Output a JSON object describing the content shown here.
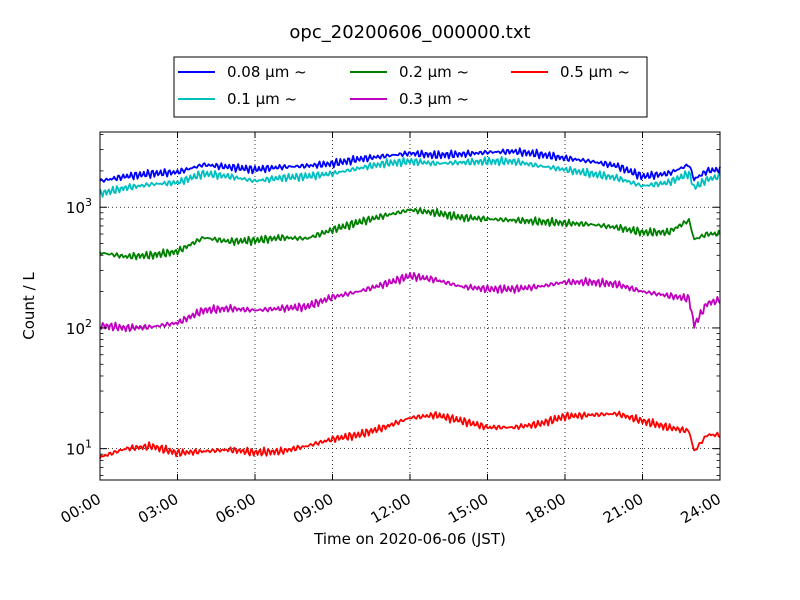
{
  "chart_data": {
    "type": "line",
    "title": "opc_20200606_000000.txt",
    "xlabel": "Time on 2020-06-06 (JST)",
    "ylabel": "Count / L",
    "y_scale": "log",
    "ylim": [
      5.5,
      4200
    ],
    "xlim_hours": [
      0,
      24
    ],
    "x_ticks": [
      {
        "hour": 0,
        "label": "00:00"
      },
      {
        "hour": 3,
        "label": "03:00"
      },
      {
        "hour": 6,
        "label": "06:00"
      },
      {
        "hour": 9,
        "label": "09:00"
      },
      {
        "hour": 12,
        "label": "12:00"
      },
      {
        "hour": 15,
        "label": "15:00"
      },
      {
        "hour": 18,
        "label": "18:00"
      },
      {
        "hour": 21,
        "label": "21:00"
      },
      {
        "hour": 24,
        "label": "24:00"
      }
    ],
    "y_ticks": [
      {
        "value": 10,
        "base": "10",
        "exp": "1"
      },
      {
        "value": 100,
        "base": "10",
        "exp": "2"
      },
      {
        "value": 1000,
        "base": "10",
        "exp": "3"
      }
    ],
    "grid": true,
    "legend_position": "top-center",
    "series": [
      {
        "name": "0.08 μm ~",
        "color": "#0000ff",
        "x": [
          0,
          1,
          2,
          3,
          4,
          5,
          6,
          7,
          8,
          9,
          10,
          11,
          12,
          13,
          14,
          15,
          16,
          17,
          18,
          19,
          20,
          21,
          22,
          22.8,
          23,
          23.5,
          24
        ],
        "y": [
          1650,
          1800,
          1900,
          1950,
          2250,
          2150,
          2050,
          2150,
          2200,
          2300,
          2500,
          2650,
          2800,
          2700,
          2750,
          2850,
          2900,
          2750,
          2550,
          2400,
          2200,
          1800,
          1900,
          2250,
          1700,
          2000,
          2050
        ]
      },
      {
        "name": "0.1 μm ~",
        "color": "#00bfbf",
        "x": [
          0,
          1,
          2,
          3,
          4,
          5,
          6,
          7,
          8,
          9,
          10,
          11,
          12,
          13,
          14,
          15,
          16,
          17,
          18,
          19,
          20,
          21,
          22,
          22.8,
          23,
          23.5,
          24
        ],
        "y": [
          1300,
          1450,
          1550,
          1600,
          1900,
          1800,
          1650,
          1750,
          1800,
          1900,
          2100,
          2300,
          2400,
          2300,
          2350,
          2400,
          2400,
          2200,
          2050,
          1900,
          1750,
          1500,
          1600,
          1900,
          1450,
          1700,
          1800
        ]
      },
      {
        "name": "0.2 μm ~",
        "color": "#008000",
        "x": [
          0,
          1,
          2,
          3,
          4,
          5,
          6,
          7,
          8,
          9,
          10,
          11,
          12,
          13,
          14,
          15,
          16,
          17,
          18,
          19,
          20,
          21,
          22,
          22.8,
          23,
          23.5,
          24
        ],
        "y": [
          420,
          390,
          400,
          430,
          560,
          520,
          530,
          560,
          550,
          650,
          750,
          850,
          950,
          900,
          820,
          800,
          780,
          760,
          740,
          720,
          680,
          620,
          620,
          780,
          540,
          600,
          600
        ]
      },
      {
        "name": "0.3 μm ~",
        "color": "#bf00bf",
        "x": [
          0,
          1,
          2,
          3,
          4,
          5,
          6,
          7,
          8,
          9,
          10,
          11,
          12,
          13,
          14,
          15,
          16,
          17,
          18,
          19,
          20,
          21,
          22,
          22.8,
          23,
          23.5,
          24
        ],
        "y": [
          105,
          100,
          102,
          110,
          140,
          145,
          140,
          145,
          150,
          180,
          200,
          230,
          270,
          250,
          220,
          210,
          210,
          220,
          240,
          240,
          230,
          200,
          185,
          175,
          105,
          160,
          170
        ]
      },
      {
        "name": "0.5 μm ~",
        "color": "#ff0000",
        "x": [
          0,
          1,
          2,
          3,
          4,
          5,
          6,
          7,
          8,
          9,
          10,
          11,
          12,
          13,
          14,
          15,
          16,
          17,
          18,
          19,
          20,
          21,
          22,
          22.8,
          23,
          23.5,
          24
        ],
        "y": [
          8.5,
          10,
          10.5,
          9.2,
          9.5,
          9.8,
          9.3,
          9.5,
          10.5,
          12,
          13,
          15,
          18,
          19,
          17,
          15,
          15,
          16,
          18.5,
          19,
          19.5,
          17,
          15,
          14,
          9.5,
          13,
          13
        ]
      }
    ]
  }
}
